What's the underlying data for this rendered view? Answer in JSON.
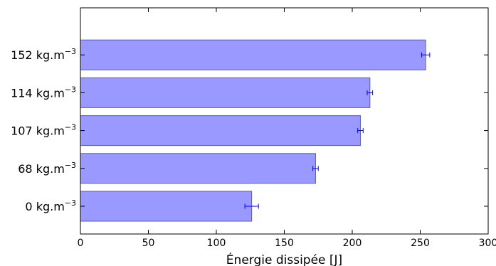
{
  "chart_data": {
    "type": "bar",
    "orientation": "horizontal",
    "title": "",
    "xlabel": "Énergie dissipée [J]",
    "ylabel": "",
    "xlim": [
      0,
      300
    ],
    "xticks": [
      0,
      50,
      100,
      150,
      200,
      250,
      300
    ],
    "grid": false,
    "legend": "none",
    "bar_color": "#9999ff",
    "bar_edge_color": "#5a5ab4",
    "error_color": "#0000ff",
    "categories": [
      {
        "base": "0 kg.m",
        "exp": "−3"
      },
      {
        "base": "68 kg.m",
        "exp": "−3"
      },
      {
        "base": "107 kg.m",
        "exp": "−3"
      },
      {
        "base": "114 kg.m",
        "exp": "−3"
      },
      {
        "base": "152 kg.m",
        "exp": "−3"
      }
    ],
    "values": [
      126,
      173,
      206,
      213,
      254
    ],
    "errors": [
      5,
      2,
      2,
      2,
      3
    ]
  }
}
